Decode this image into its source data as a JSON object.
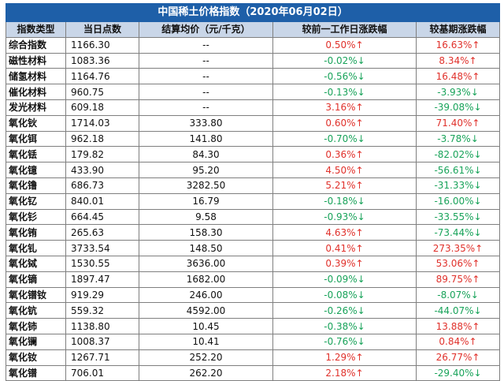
{
  "title": "中国稀土价格指数（2020年06月02日）",
  "headers": [
    "指数类型",
    "当日点数",
    "结算均价（元/千克）",
    "较前一工作日涨跌幅",
    "较基期涨跌幅"
  ],
  "rows": [
    {
      "name": "综合指数",
      "points": "1166.30",
      "settle": "--",
      "day_change": "0.50%↑",
      "day_dir": "up",
      "base_change": "16.63%↑",
      "base_dir": "up"
    },
    {
      "name": "磁性材料",
      "points": "1083.36",
      "settle": "--",
      "day_change": "-0.02%↓",
      "day_dir": "down",
      "base_change": "8.34%↑",
      "base_dir": "up"
    },
    {
      "name": "储氢材料",
      "points": "1164.76",
      "settle": "--",
      "day_change": "-0.56%↓",
      "day_dir": "down",
      "base_change": "16.48%↑",
      "base_dir": "up"
    },
    {
      "name": "催化材料",
      "points": "960.75",
      "settle": "--",
      "day_change": "-0.13%↓",
      "day_dir": "down",
      "base_change": "-3.93%↓",
      "base_dir": "down"
    },
    {
      "name": "发光材料",
      "points": "609.18",
      "settle": "--",
      "day_change": "3.16%↑",
      "day_dir": "up",
      "base_change": "-39.08%↓",
      "base_dir": "down"
    },
    {
      "name": "氧化钬",
      "points": "1714.03",
      "settle": "333.80",
      "day_change": "0.60%↑",
      "day_dir": "up",
      "base_change": "71.40%↑",
      "base_dir": "up"
    },
    {
      "name": "氧化铒",
      "points": "962.18",
      "settle": "141.80",
      "day_change": "-0.70%↓",
      "day_dir": "down",
      "base_change": "-3.78%↓",
      "base_dir": "down"
    },
    {
      "name": "氧化铥",
      "points": "179.82",
      "settle": "84.30",
      "day_change": "0.36%↑",
      "day_dir": "up",
      "base_change": "-82.02%↓",
      "base_dir": "down"
    },
    {
      "name": "氧化镱",
      "points": "433.90",
      "settle": "95.20",
      "day_change": "4.50%↑",
      "day_dir": "up",
      "base_change": "-56.61%↓",
      "base_dir": "down"
    },
    {
      "name": "氧化镥",
      "points": "686.73",
      "settle": "3282.50",
      "day_change": "5.21%↑",
      "day_dir": "up",
      "base_change": "-31.33%↓",
      "base_dir": "down"
    },
    {
      "name": "氧化钇",
      "points": "840.01",
      "settle": "16.79",
      "day_change": "-0.18%↓",
      "day_dir": "down",
      "base_change": "-16.00%↓",
      "base_dir": "down"
    },
    {
      "name": "氧化钐",
      "points": "664.45",
      "settle": "9.58",
      "day_change": "-0.93%↓",
      "day_dir": "down",
      "base_change": "-33.55%↓",
      "base_dir": "down"
    },
    {
      "name": "氧化铕",
      "points": "265.63",
      "settle": "158.30",
      "day_change": "4.63%↑",
      "day_dir": "up",
      "base_change": "-73.44%↓",
      "base_dir": "down"
    },
    {
      "name": "氧化钆",
      "points": "3733.54",
      "settle": "148.50",
      "day_change": "0.41%↑",
      "day_dir": "up",
      "base_change": "273.35%↑",
      "base_dir": "up"
    },
    {
      "name": "氧化铽",
      "points": "1530.55",
      "settle": "3636.00",
      "day_change": "0.39%↑",
      "day_dir": "up",
      "base_change": "53.06%↑",
      "base_dir": "up"
    },
    {
      "name": "氧化镝",
      "points": "1897.47",
      "settle": "1682.00",
      "day_change": "-0.09%↓",
      "day_dir": "down",
      "base_change": "89.75%↑",
      "base_dir": "up"
    },
    {
      "name": "氧化镨钕",
      "points": "919.29",
      "settle": "246.00",
      "day_change": "-0.08%↓",
      "day_dir": "down",
      "base_change": "-8.07%↓",
      "base_dir": "down"
    },
    {
      "name": "氧化钪",
      "points": "559.32",
      "settle": "4592.00",
      "day_change": "-0.26%↓",
      "day_dir": "down",
      "base_change": "-44.07%↓",
      "base_dir": "down"
    },
    {
      "name": "氧化铈",
      "points": "1138.80",
      "settle": "10.45",
      "day_change": "-0.38%↓",
      "day_dir": "down",
      "base_change": "13.88%↑",
      "base_dir": "up"
    },
    {
      "name": "氧化镧",
      "points": "1008.37",
      "settle": "10.41",
      "day_change": "-0.76%↓",
      "day_dir": "down",
      "base_change": "0.84%↑",
      "base_dir": "up"
    },
    {
      "name": "氧化钕",
      "points": "1267.71",
      "settle": "252.20",
      "day_change": "1.29%↑",
      "day_dir": "up",
      "base_change": "26.77%↑",
      "base_dir": "up"
    },
    {
      "name": "氧化镨",
      "points": "706.01",
      "settle": "262.20",
      "day_change": "2.18%↑",
      "day_dir": "up",
      "base_change": "-29.40%↓",
      "base_dir": "down"
    }
  ],
  "colors": {
    "title_bg": "#1e5fa8",
    "header_bg": "#c9d6e8",
    "up": "#e0312b",
    "down": "#19a35a"
  }
}
